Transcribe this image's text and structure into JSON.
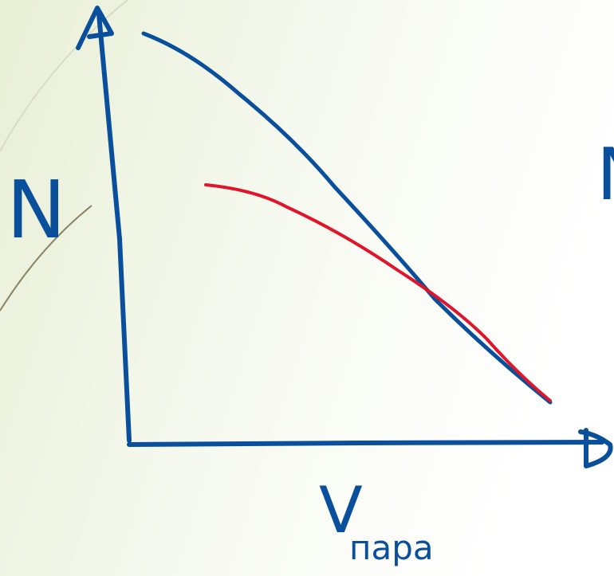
{
  "y_axis_label": "N",
  "x_axis_label": "V",
  "x_axis_subscript": "пара",
  "right_label": "N"
}
